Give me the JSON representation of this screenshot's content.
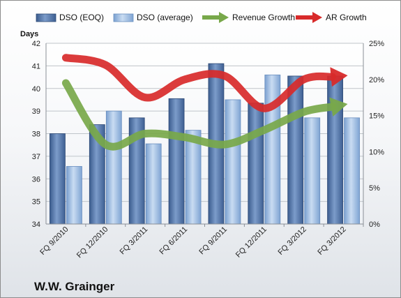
{
  "chart_data": {
    "type": "bar",
    "title": "W.W. Grainger",
    "ylabel": "Days",
    "ylim": [
      34,
      42
    ],
    "y2lim": [
      0,
      25
    ],
    "y_ticks": [
      "34",
      "35",
      "36",
      "37",
      "38",
      "39",
      "40",
      "41",
      "42"
    ],
    "y2_ticks": [
      "0%",
      "5%",
      "10%",
      "15%",
      "20%",
      "25%"
    ],
    "categories": [
      "FQ 9/2010",
      "FQ 12/2010",
      "FQ 3/2011",
      "FQ 6/2011",
      "FQ 9/2011",
      "FQ 12/2011",
      "FQ 3/2012",
      "FQ 3/2012"
    ],
    "bar_series": [
      {
        "name": "DSO (EOQ)",
        "axis": "left",
        "values": [
          38.0,
          38.4,
          38.7,
          39.55,
          41.1,
          39.35,
          40.55,
          40.55
        ]
      },
      {
        "name": "DSO (average)",
        "axis": "left",
        "values": [
          36.55,
          39.0,
          37.55,
          38.15,
          39.5,
          40.6,
          38.7,
          38.7
        ]
      }
    ],
    "line_series": [
      {
        "name": "Revenue Growth",
        "axis": "right",
        "unit": "%",
        "values": [
          19.5,
          11.0,
          12.5,
          12.0,
          11.0,
          13.0,
          15.5,
          16.5
        ],
        "color": "#78a84a"
      },
      {
        "name": "AR Growth",
        "axis": "right",
        "unit": "%",
        "values": [
          23.0,
          22.0,
          17.5,
          20.0,
          20.5,
          16.0,
          20.0,
          20.5
        ],
        "color": "#d82a2a"
      }
    ],
    "grid": true,
    "legend_position": "top"
  }
}
